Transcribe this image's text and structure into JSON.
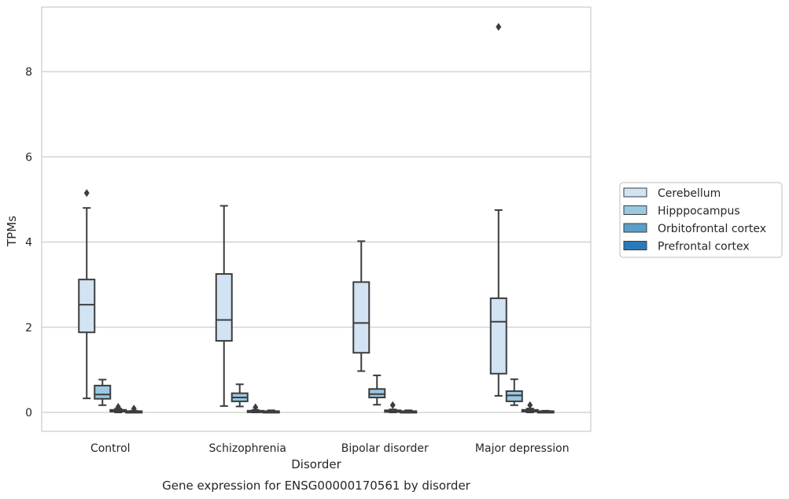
{
  "chart_data": {
    "type": "box",
    "title": "",
    "caption": "Gene expression for ENSG00000170561 by disorder",
    "xlabel": "Disorder",
    "ylabel": "TPMs",
    "ylim": [
      -0.45,
      9.65
    ],
    "yticks": [
      0,
      2,
      4,
      6,
      8
    ],
    "grid": true,
    "legend_position": "right",
    "categories": [
      "Control",
      "Schizophrenia",
      "Bipolar disorder",
      "Major depression"
    ],
    "series": [
      {
        "name": "Cerebellum",
        "color": "#d2e3f3",
        "boxes": [
          {
            "whisker_low": 0.33,
            "q1": 1.88,
            "median": 2.53,
            "q3": 3.12,
            "whisker_high": 4.8,
            "outliers": [
              5.15
            ]
          },
          {
            "whisker_low": 0.15,
            "q1": 1.68,
            "median": 2.17,
            "q3": 3.25,
            "whisker_high": 4.85,
            "outliers": []
          },
          {
            "whisker_low": 0.97,
            "q1": 1.4,
            "median": 2.1,
            "q3": 3.06,
            "whisker_high": 4.02,
            "outliers": []
          },
          {
            "whisker_low": 0.39,
            "q1": 0.91,
            "median": 2.13,
            "q3": 2.68,
            "whisker_high": 4.75,
            "outliers": [
              9.05
            ]
          }
        ]
      },
      {
        "name": "Hipppocampus",
        "color": "#9ac8e0",
        "boxes": [
          {
            "whisker_low": 0.17,
            "q1": 0.32,
            "median": 0.42,
            "q3": 0.63,
            "whisker_high": 0.77,
            "outliers": []
          },
          {
            "whisker_low": 0.14,
            "q1": 0.26,
            "median": 0.35,
            "q3": 0.45,
            "whisker_high": 0.66,
            "outliers": []
          },
          {
            "whisker_low": 0.18,
            "q1": 0.35,
            "median": 0.43,
            "q3": 0.55,
            "whisker_high": 0.87,
            "outliers": []
          },
          {
            "whisker_low": 0.17,
            "q1": 0.26,
            "median": 0.4,
            "q3": 0.5,
            "whisker_high": 0.78,
            "outliers": []
          }
        ]
      },
      {
        "name": "Orbitofrontal cortex",
        "color": "#5a9ec9",
        "boxes": [
          {
            "whisker_low": 0.0,
            "q1": 0.02,
            "median": 0.04,
            "q3": 0.06,
            "whisker_high": 0.09,
            "outliers": [
              0.13
            ]
          },
          {
            "whisker_low": 0.0,
            "q1": 0.01,
            "median": 0.02,
            "q3": 0.04,
            "whisker_high": 0.06,
            "outliers": [
              0.12
            ]
          },
          {
            "whisker_low": 0.0,
            "q1": 0.01,
            "median": 0.03,
            "q3": 0.05,
            "whisker_high": 0.07,
            "outliers": [
              0.17
            ]
          },
          {
            "whisker_low": 0.0,
            "q1": 0.02,
            "median": 0.04,
            "q3": 0.06,
            "whisker_high": 0.09,
            "outliers": [
              0.17
            ]
          }
        ]
      },
      {
        "name": "Prefrontal cortex",
        "color": "#2a7ab9",
        "boxes": [
          {
            "whisker_low": 0.0,
            "q1": 0.01,
            "median": 0.02,
            "q3": 0.03,
            "whisker_high": 0.04,
            "outliers": [
              0.09
            ]
          },
          {
            "whisker_low": 0.0,
            "q1": 0.01,
            "median": 0.02,
            "q3": 0.03,
            "whisker_high": 0.05,
            "outliers": []
          },
          {
            "whisker_low": 0.0,
            "q1": 0.01,
            "median": 0.02,
            "q3": 0.03,
            "whisker_high": 0.05,
            "outliers": []
          },
          {
            "whisker_low": 0.0,
            "q1": 0.01,
            "median": 0.02,
            "q3": 0.03,
            "whisker_high": 0.04,
            "outliers": []
          }
        ]
      }
    ]
  }
}
